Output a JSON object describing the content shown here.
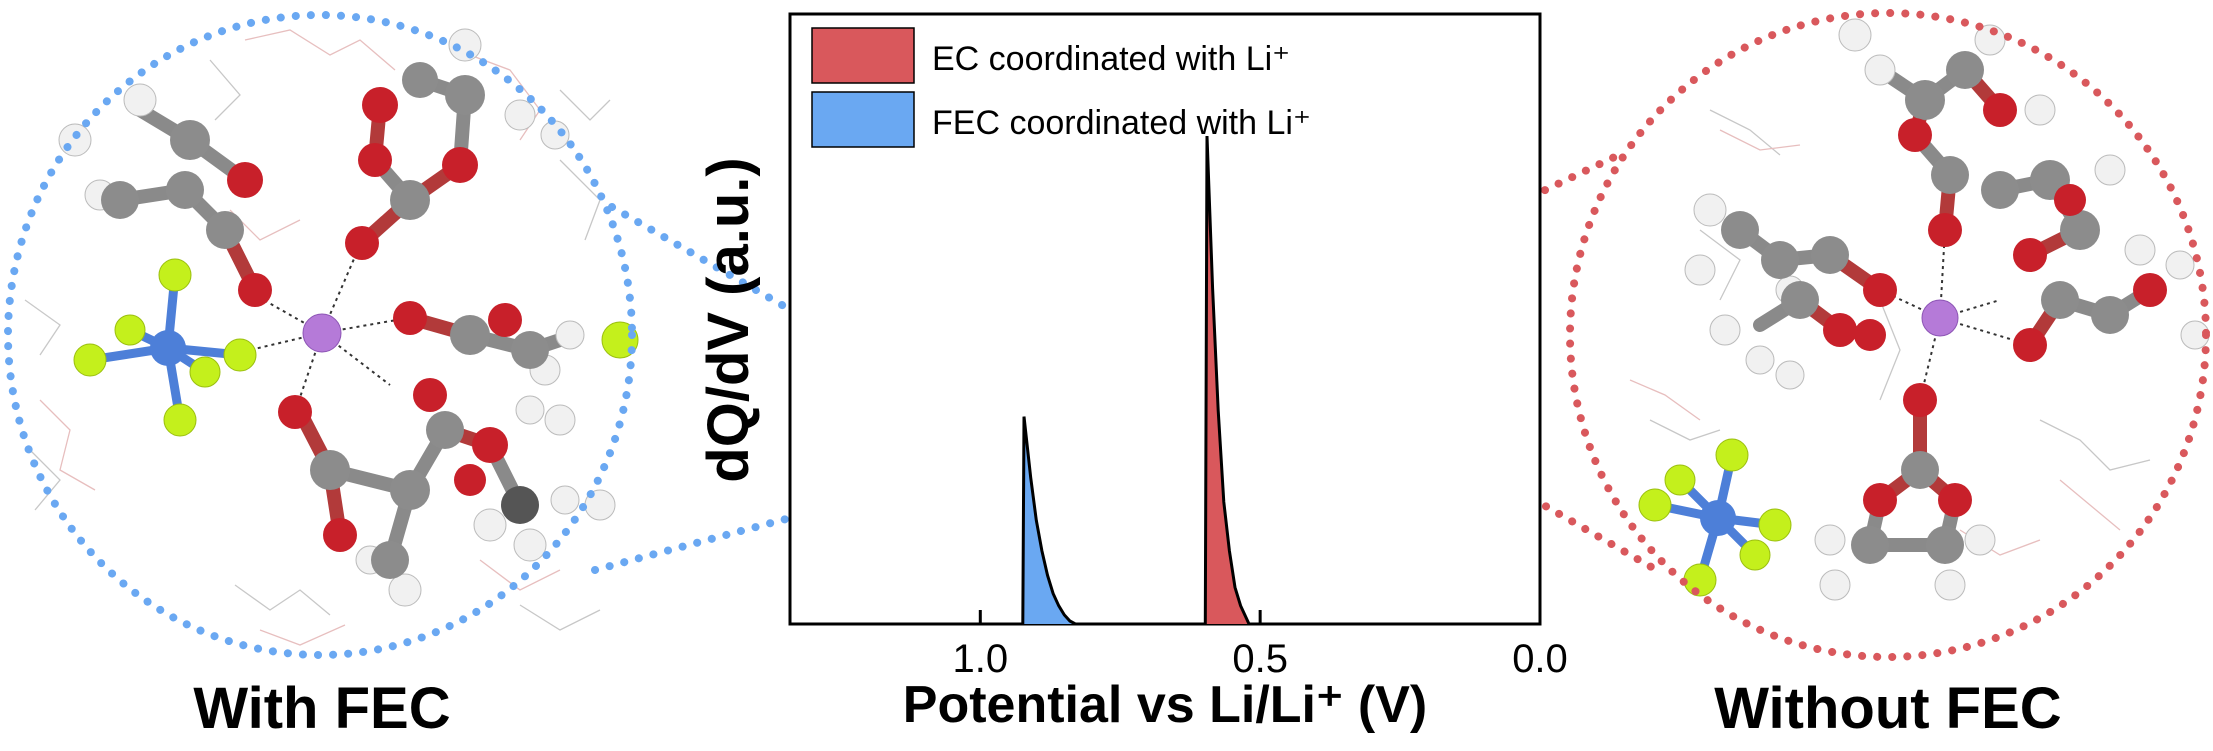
{
  "panels": {
    "left_caption": "With FEC",
    "right_caption": "Without FEC"
  },
  "colors": {
    "ec": "#d9585c",
    "fec": "#6aa8f2",
    "oxygen": "#c8202a",
    "carbon": "#7f7f7f",
    "hydrogen": "#f4f4f4",
    "lithium": "#b57ad8",
    "fluorine": "#c4f01c",
    "phosphorus": "#4d7fd8"
  },
  "chart_data": {
    "type": "area",
    "xlabel": "Potential vs Li/Li⁺ (V)",
    "ylabel": "dQ/dV (a.u.)",
    "x_reversed": true,
    "xlim": [
      1.34,
      0.0
    ],
    "ylim": [
      0,
      1.0
    ],
    "xticks": [
      "1.0",
      "0.5",
      "0.0"
    ],
    "xtick_values": [
      1.0,
      0.5,
      0.0
    ],
    "legend_position": "top-left",
    "series": [
      {
        "name": "EC coordinated with Li⁺",
        "color": "#d9585c",
        "points": [
          [
            0.598,
            0
          ],
          [
            0.595,
            0.8
          ],
          [
            0.585,
            0.55
          ],
          [
            0.575,
            0.35
          ],
          [
            0.565,
            0.2
          ],
          [
            0.555,
            0.12
          ],
          [
            0.545,
            0.06
          ],
          [
            0.535,
            0.03
          ],
          [
            0.525,
            0.01
          ],
          [
            0.52,
            0
          ]
        ]
      },
      {
        "name": "FEC coordinated with Li⁺",
        "color": "#6aa8f2",
        "points": [
          [
            0.924,
            0
          ],
          [
            0.922,
            0.34
          ],
          [
            0.91,
            0.24
          ],
          [
            0.9,
            0.17
          ],
          [
            0.89,
            0.12
          ],
          [
            0.88,
            0.08
          ],
          [
            0.87,
            0.05
          ],
          [
            0.86,
            0.03
          ],
          [
            0.85,
            0.015
          ],
          [
            0.84,
            0.005
          ],
          [
            0.83,
            0
          ]
        ]
      }
    ]
  }
}
